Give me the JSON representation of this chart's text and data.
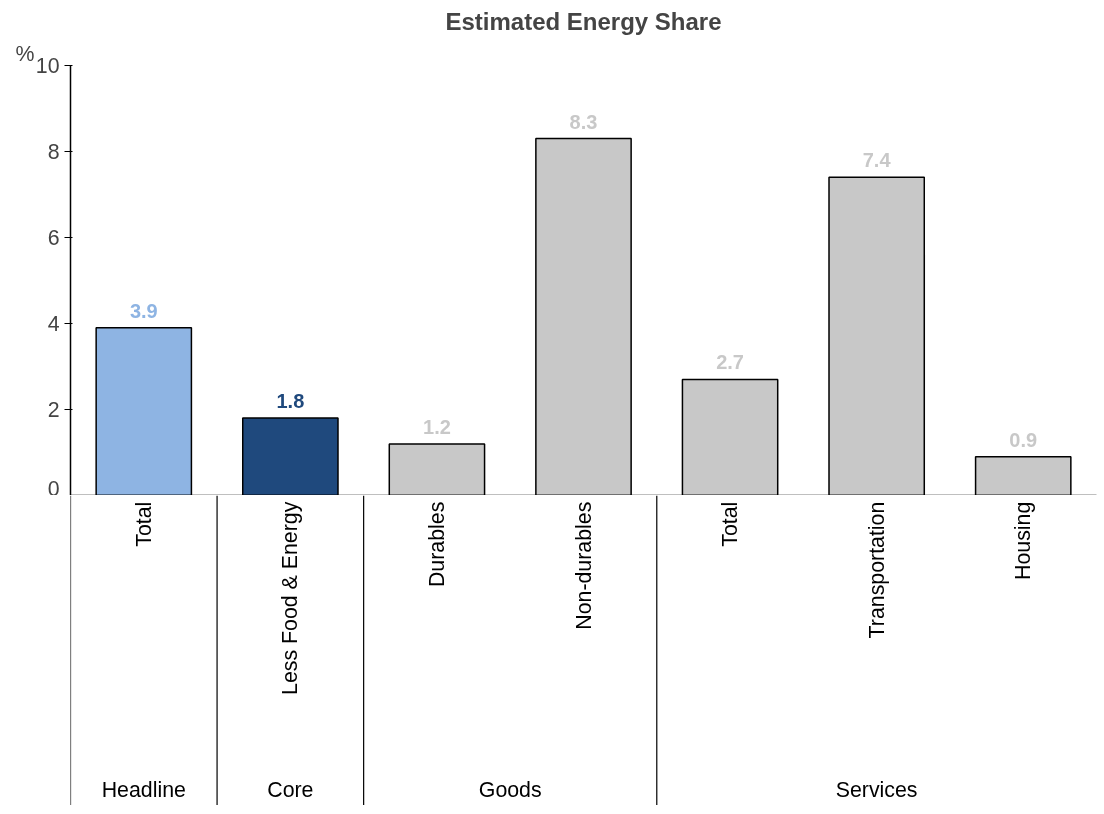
{
  "chart_data": {
    "type": "bar",
    "title": "Estimated Energy Share",
    "ylabel": "%",
    "categories": [
      "Total",
      "Less Food & Energy",
      "Durables",
      "Non-durables",
      "Total",
      "Transportation",
      "Housing"
    ],
    "values": [
      3.9,
      1.8,
      1.2,
      8.3,
      2.7,
      7.4,
      0.9
    ],
    "colors": [
      "#8eb4e3",
      "#1f497d",
      "#c8c8c8",
      "#c8c8c8",
      "#c8c8c8",
      "#c8c8c8",
      "#c8c8c8"
    ],
    "ylim": [
      0,
      10
    ],
    "yticks": [
      0,
      2,
      4,
      6,
      8,
      10
    ],
    "data_labels": true,
    "annotations": [
      "Headline",
      "Core",
      "Goods",
      "Services"
    ]
  }
}
